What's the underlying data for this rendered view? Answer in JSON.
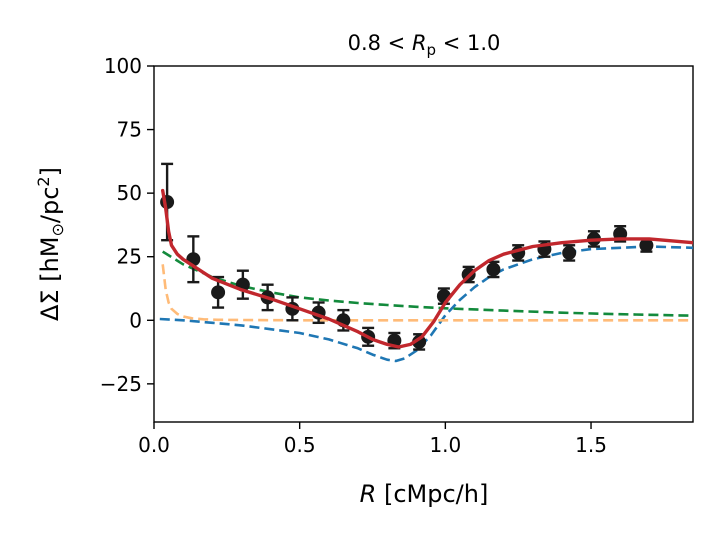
{
  "chart_data": {
    "type": "line",
    "title_parts": {
      "lhs": "0.8 < ",
      "var": "R",
      "sub": "p",
      "rhs": " < 1.0"
    },
    "xlabel_parts": {
      "var": "R",
      "unit": " [cMpc/h]"
    },
    "ylabel_parts": {
      "pre": "ΔΣ [hM",
      "sub": "⊙",
      "mid": "/pc",
      "sup": "2",
      "post": "]"
    },
    "xlim": [
      0.0,
      1.85
    ],
    "ylim": [
      -40,
      100
    ],
    "xticks": [
      0.0,
      0.5,
      1.0,
      1.5
    ],
    "xtick_labels": [
      "0.0",
      "0.5",
      "1.0",
      "1.5"
    ],
    "yticks": [
      -25,
      0,
      25,
      50,
      75,
      100
    ],
    "ytick_labels": [
      "−25",
      "0",
      "25",
      "50",
      "75",
      "100"
    ],
    "measurements": {
      "name": "data",
      "color": "#1a1a1a",
      "points": [
        {
          "x": 0.045,
          "y": 46.5,
          "err": 15
        },
        {
          "x": 0.135,
          "y": 24,
          "err": 9
        },
        {
          "x": 0.22,
          "y": 11,
          "err": 6
        },
        {
          "x": 0.305,
          "y": 14,
          "err": 5.5
        },
        {
          "x": 0.39,
          "y": 9,
          "err": 5
        },
        {
          "x": 0.475,
          "y": 4.5,
          "err": 4.5
        },
        {
          "x": 0.565,
          "y": 3,
          "err": 4
        },
        {
          "x": 0.65,
          "y": 0,
          "err": 4
        },
        {
          "x": 0.735,
          "y": -6.5,
          "err": 3.5
        },
        {
          "x": 0.825,
          "y": -8,
          "err": 3
        },
        {
          "x": 0.91,
          "y": -8.5,
          "err": 3
        },
        {
          "x": 0.995,
          "y": 9.5,
          "err": 3
        },
        {
          "x": 1.08,
          "y": 18,
          "err": 3
        },
        {
          "x": 1.165,
          "y": 20,
          "err": 3
        },
        {
          "x": 1.25,
          "y": 26.5,
          "err": 3
        },
        {
          "x": 1.34,
          "y": 28,
          "err": 3
        },
        {
          "x": 1.425,
          "y": 26.5,
          "err": 3
        },
        {
          "x": 1.51,
          "y": 32,
          "err": 3
        },
        {
          "x": 1.6,
          "y": 34,
          "err": 3
        },
        {
          "x": 1.69,
          "y": 29.5,
          "err": 2.5
        }
      ]
    },
    "series": [
      {
        "name": "two-halo (blue dashed)",
        "color": "#1f77b4",
        "dash": "10,5",
        "width": 2.6,
        "x": [
          0.02,
          0.1,
          0.2,
          0.3,
          0.4,
          0.5,
          0.6,
          0.7,
          0.75,
          0.8,
          0.83,
          0.86,
          0.9,
          0.95,
          1.0,
          1.05,
          1.1,
          1.15,
          1.2,
          1.3,
          1.4,
          1.5,
          1.6,
          1.7,
          1.85
        ],
        "y": [
          0.5,
          0,
          -1,
          -2,
          -3.5,
          -5,
          -7.5,
          -11,
          -13.5,
          -15.5,
          -16,
          -15,
          -12,
          -6,
          2,
          8,
          13,
          17,
          20,
          24,
          26.5,
          28,
          28.5,
          29,
          28.5
        ]
      },
      {
        "name": "one-halo (orange dashed)",
        "color": "#ffbb78",
        "dash": "10,5",
        "width": 2.6,
        "x": [
          0.03,
          0.04,
          0.05,
          0.06,
          0.08,
          0.1,
          0.13,
          0.17,
          0.22,
          0.3,
          0.5,
          1.0,
          1.85
        ],
        "y": [
          22,
          12,
          7,
          4.5,
          2.5,
          1.5,
          0.8,
          0.4,
          0.2,
          0.1,
          0,
          0,
          0
        ]
      },
      {
        "name": "stellar term (green dashed)",
        "color": "#138a3c",
        "dash": "10,5",
        "width": 2.6,
        "x": [
          0.03,
          0.1,
          0.2,
          0.3,
          0.4,
          0.5,
          0.6,
          0.7,
          0.8,
          0.9,
          1.0,
          1.2,
          1.4,
          1.6,
          1.85
        ],
        "y": [
          27,
          22,
          17,
          13.5,
          11,
          9,
          7.8,
          6.8,
          6,
          5.3,
          4.7,
          3.8,
          3,
          2.4,
          1.8
        ]
      },
      {
        "name": "total model (red solid)",
        "color": "#c1272d",
        "dash": "",
        "width": 3.4,
        "x": [
          0.03,
          0.04,
          0.05,
          0.06,
          0.08,
          0.1,
          0.14,
          0.2,
          0.3,
          0.4,
          0.5,
          0.6,
          0.7,
          0.75,
          0.8,
          0.84,
          0.88,
          0.92,
          0.96,
          1.0,
          1.05,
          1.1,
          1.15,
          1.2,
          1.3,
          1.4,
          1.5,
          1.6,
          1.7,
          1.85
        ],
        "y": [
          51,
          44,
          35,
          29.5,
          26,
          24,
          21,
          16.5,
          12,
          8.5,
          4.5,
          0.5,
          -4.5,
          -7.5,
          -9.5,
          -10.5,
          -9.5,
          -6.5,
          -0.5,
          7,
          14,
          19.5,
          23.5,
          26,
          29,
          30.5,
          31.5,
          32,
          32,
          30.5
        ]
      }
    ]
  }
}
